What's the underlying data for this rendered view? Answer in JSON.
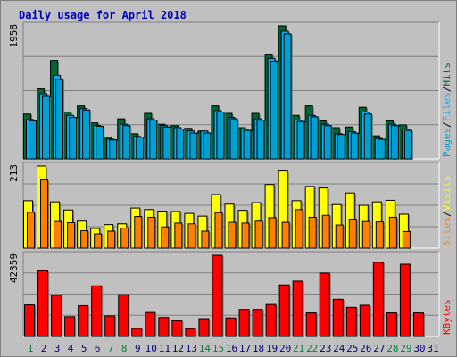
{
  "colors": {
    "background": "#c0c0c0",
    "title": "#0000c0",
    "hits": "#006633",
    "files": "#00b0ff",
    "pages": "#00a0d0",
    "visits": "#ffff00",
    "sites": "#ff8000",
    "kbytes": "#ff0000",
    "weekend": "#008040",
    "weekday": "#000080"
  },
  "chart_data": {
    "type": "bar",
    "title": "Daily usage for April 2018",
    "days": [
      "1",
      "2",
      "3",
      "4",
      "5",
      "6",
      "7",
      "8",
      "9",
      "10",
      "11",
      "12",
      "13",
      "14",
      "15",
      "16",
      "17",
      "18",
      "19",
      "20",
      "21",
      "22",
      "23",
      "24",
      "25",
      "26",
      "27",
      "28",
      "29",
      "30",
      "31"
    ],
    "weekend_days": [
      "1",
      "7",
      "8",
      "14",
      "15",
      "21",
      "22",
      "28",
      "29"
    ],
    "panels": [
      {
        "name": "hits-files-pages",
        "ymax": 1958,
        "ymax_label": "1958",
        "legend": [
          "Pages",
          "/",
          "Files",
          "/",
          "Hits"
        ],
        "series": [
          {
            "name": "Hits",
            "values": [
              660,
              1030,
              1450,
              690,
              780,
              530,
              320,
              590,
              370,
              670,
              510,
              490,
              450,
              410,
              780,
              670,
              460,
              670,
              1530,
              1958,
              640,
              780,
              560,
              460,
              470,
              760,
              340,
              560,
              500,
              0,
              0
            ]
          },
          {
            "name": "Files",
            "values": [
              580,
              960,
              1230,
              640,
              740,
              490,
              290,
              510,
              330,
              590,
              490,
              460,
              410,
              410,
              710,
              610,
              440,
              590,
              1480,
              1880,
              570,
              640,
              510,
              370,
              400,
              690,
              300,
              510,
              440,
              0,
              0
            ]
          },
          {
            "name": "Pages",
            "values": [
              560,
              920,
              1170,
              610,
              720,
              480,
              280,
              490,
              320,
              570,
              470,
              440,
              380,
              380,
              690,
              590,
              420,
              570,
              1440,
              1840,
              550,
              620,
              490,
              360,
              380,
              660,
              290,
              490,
              420,
              0,
              0
            ]
          }
        ]
      },
      {
        "name": "visits-sites",
        "ymax": 213,
        "ymax_label": "213",
        "legend": [
          "Sites",
          "/",
          "Visits"
        ],
        "series": [
          {
            "name": "Visits",
            "values": [
              123,
              213,
              120,
              99,
              70,
              51,
              61,
              63,
              104,
              100,
              96,
              95,
              90,
              83,
              139,
              114,
              98,
              118,
              165,
              200,
              123,
              160,
              156,
              113,
              143,
              111,
              120,
              124,
              88,
              0,
              0
            ]
          },
          {
            "name": "Sites",
            "values": [
              93,
              177,
              69,
              66,
              45,
              37,
              44,
              52,
              82,
              80,
              55,
              65,
              63,
              44,
              92,
              67,
              65,
              70,
              79,
              67,
              100,
              80,
              85,
              60,
              75,
              69,
              68,
              80,
              43,
              0,
              0
            ]
          }
        ]
      },
      {
        "name": "kbytes",
        "ymax": 42359,
        "ymax_label": "42359",
        "legend": [
          "KBytes"
        ],
        "series": [
          {
            "name": "KBytes",
            "values": [
              16500,
              34300,
              21500,
              10300,
              16100,
              26400,
              10700,
              21800,
              4200,
              12500,
              9900,
              8200,
              4100,
              9300,
              42359,
              9700,
              14100,
              14100,
              16700,
              26900,
              28900,
              12300,
              33100,
              19400,
              15200,
              16300,
              38700,
              12300,
              37700,
              12300,
              0
            ]
          }
        ]
      }
    ]
  }
}
